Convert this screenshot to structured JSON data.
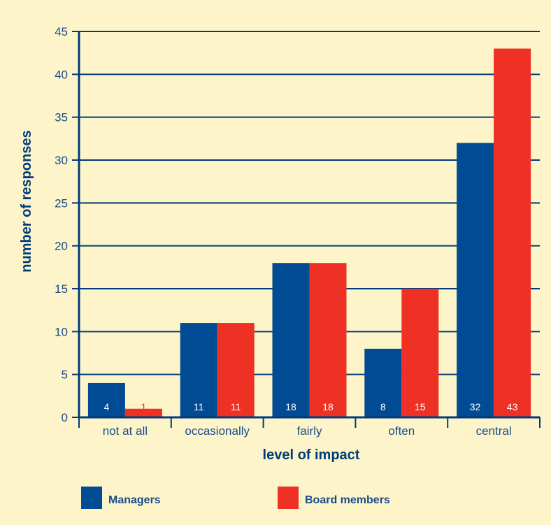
{
  "chart_data": {
    "type": "bar",
    "categories": [
      "not at all",
      "occasionally",
      "fairly",
      "often",
      "central"
    ],
    "series": [
      {
        "name": "Managers",
        "values": [
          4,
          11,
          18,
          8,
          32
        ],
        "color": "#004b93",
        "label_color": "#ffffff"
      },
      {
        "name": "Board members",
        "values": [
          1,
          11,
          18,
          15,
          43
        ],
        "color": "#ee3124",
        "label_color": "#ffffff"
      }
    ],
    "xlabel": "level of impact",
    "ylabel": "number of responses",
    "ylim": [
      0,
      45
    ],
    "yticks": [
      "0",
      "5",
      "10",
      "15",
      "20",
      "25",
      "30",
      "35",
      "40",
      "45"
    ],
    "grid": true,
    "legend_position": "bottom",
    "background_color": "#fdf5c9",
    "axis_color": "#003b7c"
  }
}
